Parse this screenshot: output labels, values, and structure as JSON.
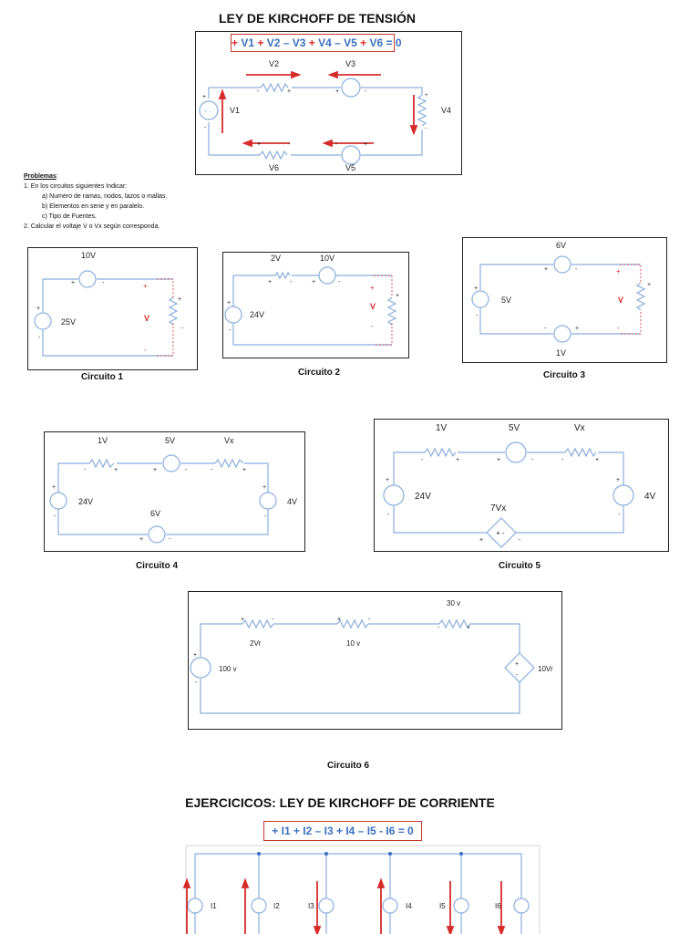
{
  "kvl": {
    "title": "LEY DE KIRCHOFF DE TENSIÓN",
    "equation": [
      {
        "t": "+ ",
        "red": true
      },
      {
        "t": "V1 ",
        "red": false
      },
      {
        "t": "+ ",
        "red": true
      },
      {
        "t": "V2 ",
        "red": false
      },
      {
        "t": "– ",
        "red": false
      },
      {
        "t": "V3 ",
        "red": false
      },
      {
        "t": "+ ",
        "red": true
      },
      {
        "t": "V4 ",
        "red": false
      },
      {
        "t": "– ",
        "red": false
      },
      {
        "t": "V5 ",
        "red": false
      },
      {
        "t": "+ ",
        "red": true
      },
      {
        "t": "V6 = 0",
        "red": false
      }
    ],
    "labels": {
      "v1": "V1",
      "v2": "V2",
      "v3": "V3",
      "v4": "V4",
      "v5": "V5",
      "v6": "V6"
    }
  },
  "problems": {
    "heading": "Problemas",
    "item1": "1.    En los  circuitos siguientes Indicar:",
    "a": "a)     Numero de ramas, nodos, lazos o mallas.",
    "b": "b)     Elementos en serie y en paralelo.",
    "c": "c)     Tipo de Fuentes.",
    "item2": "2.    Calcular el voltaje V o Vx según corresponda."
  },
  "circuits": {
    "c1": {
      "caption": "Circuito 1",
      "src1": "25V",
      "src2": "10V",
      "v": "V"
    },
    "c2": {
      "caption": "Circuito 2",
      "src1": "24V",
      "src2": "2V",
      "src3": "10V",
      "v": "V"
    },
    "c3": {
      "caption": "Circuito 3",
      "src1": "5V",
      "src2": "6V",
      "src3": "1V",
      "v": "V"
    },
    "c4": {
      "caption": "Circuito 4",
      "r1": "1V",
      "s1": "5V",
      "r2": "Vx",
      "left": "24V",
      "right": "4V",
      "bottom": "6V"
    },
    "c5": {
      "caption": "Circuito 5",
      "r1": "1V",
      "s1": "5V",
      "r2": "Vx",
      "left": "24V",
      "right": "4V",
      "dep": "7Vx"
    },
    "c6": {
      "caption": "Circuito 6",
      "r1": "2Vr",
      "r2": "10 v",
      "r3": "30 v",
      "left": "100 v",
      "right": "10Vr"
    }
  },
  "kcl": {
    "title": "EJERCICICOS: LEY DE KIRCHOFF DE CORRIENTE",
    "equation": "+ I1 + I2 – I3 + I4 – I5 - I6 = 0",
    "labels": [
      "I1",
      "I2",
      "I3",
      "I4",
      "I5",
      "I6"
    ]
  },
  "colors": {
    "wire": "#8aaedc",
    "red": "#d62b2b",
    "blue": "#3b6fc0"
  }
}
